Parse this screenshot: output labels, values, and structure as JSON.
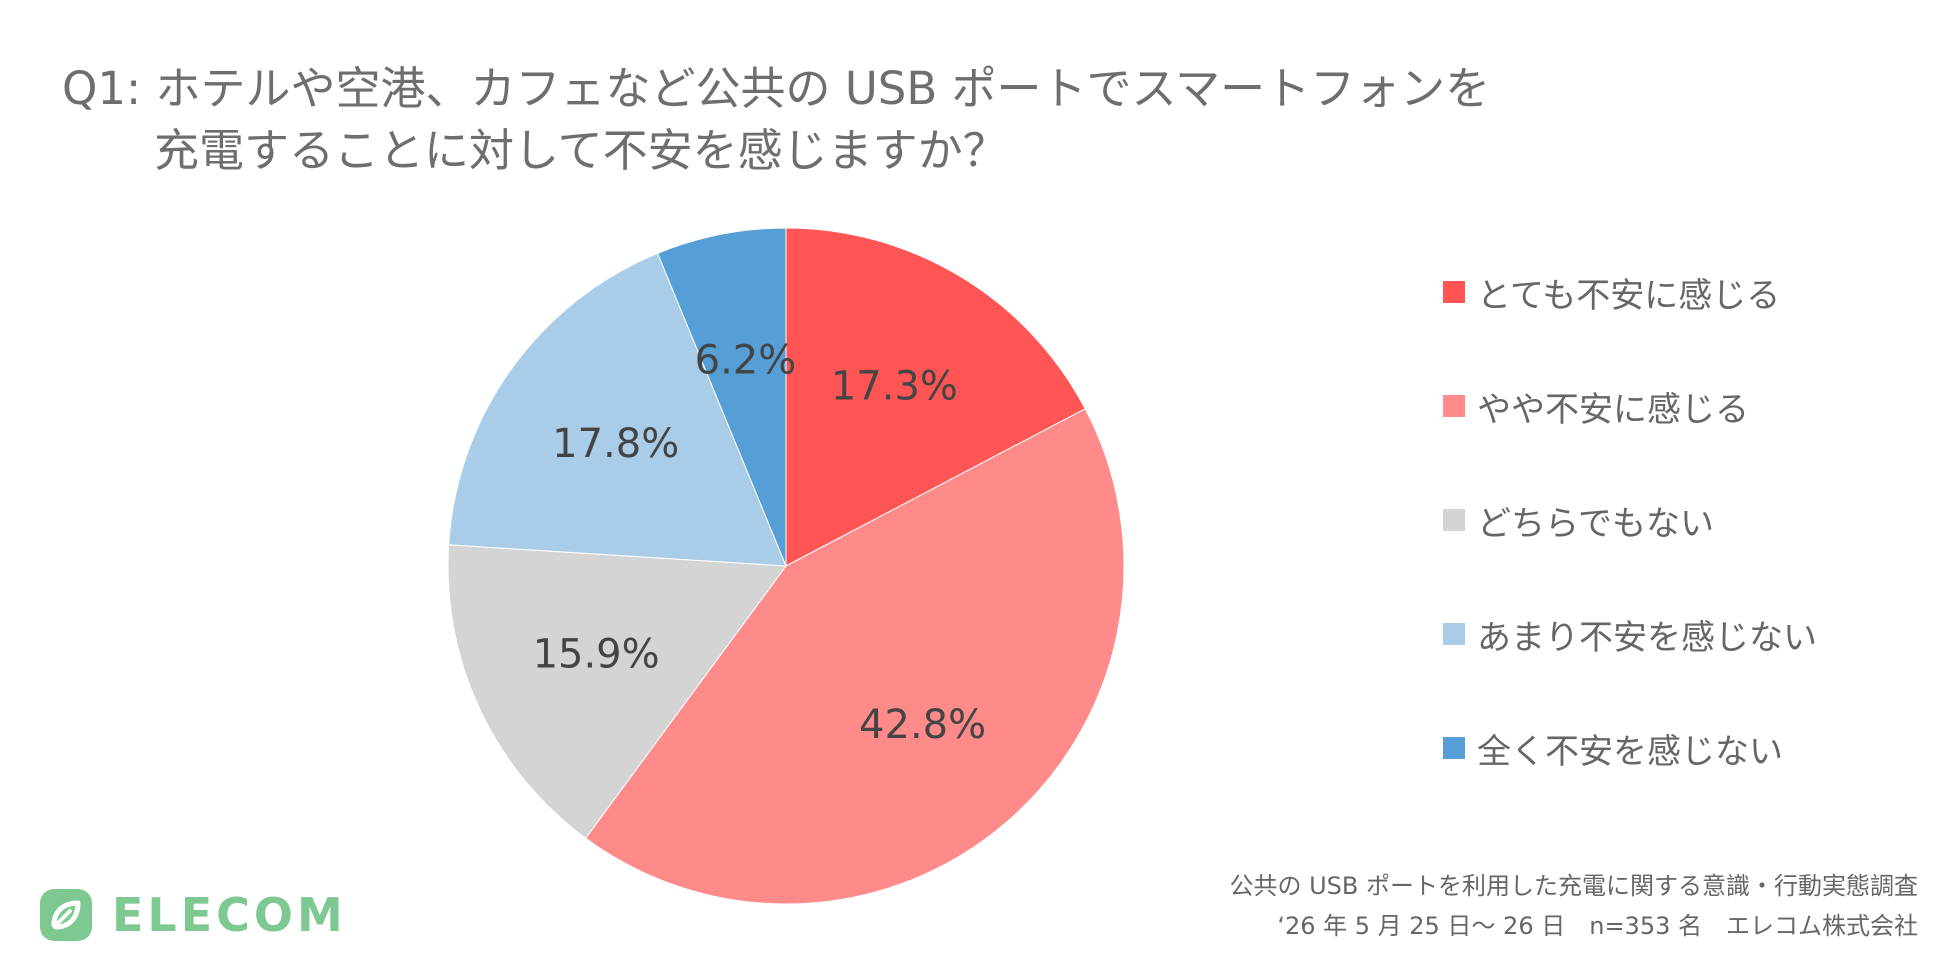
{
  "title": {
    "line1": "Q1: ホテルや空港、カフェなど公共の USB ポートでスマートフォンを",
    "line2": "充電することに対して不安を感じますか？"
  },
  "chart_data": {
    "type": "pie",
    "start_angle_deg": 0,
    "direction": "clockwise",
    "slices": [
      {
        "label": "とても不安に感じる",
        "value": 17.3,
        "display": "17.3%",
        "color": "#ff5555"
      },
      {
        "label": "やや不安に感じる",
        "value": 42.8,
        "display": "42.8%",
        "color": "#ff8a8a"
      },
      {
        "label": "どちらでもない",
        "value": 15.9,
        "display": "15.9%",
        "color": "#d4d4d4"
      },
      {
        "label": "あまり不安を感じない",
        "value": 17.8,
        "display": "17.8%",
        "color": "#a9cde9"
      },
      {
        "label": "全く不安を感じない",
        "value": 6.2,
        "display": "6.2%",
        "color": "#559fd6"
      }
    ],
    "legend_position": "right"
  },
  "logo": {
    "text": "ELECOM",
    "icon": "elecom-leaf-icon",
    "color": "#7ec992"
  },
  "footer": {
    "line1": "公共の USB ポートを利用した充電に関する意識・行動実態調査",
    "line2": "‘26 年 5 月 25 日〜 26 日　n=353 名　エレコム株式会社"
  }
}
